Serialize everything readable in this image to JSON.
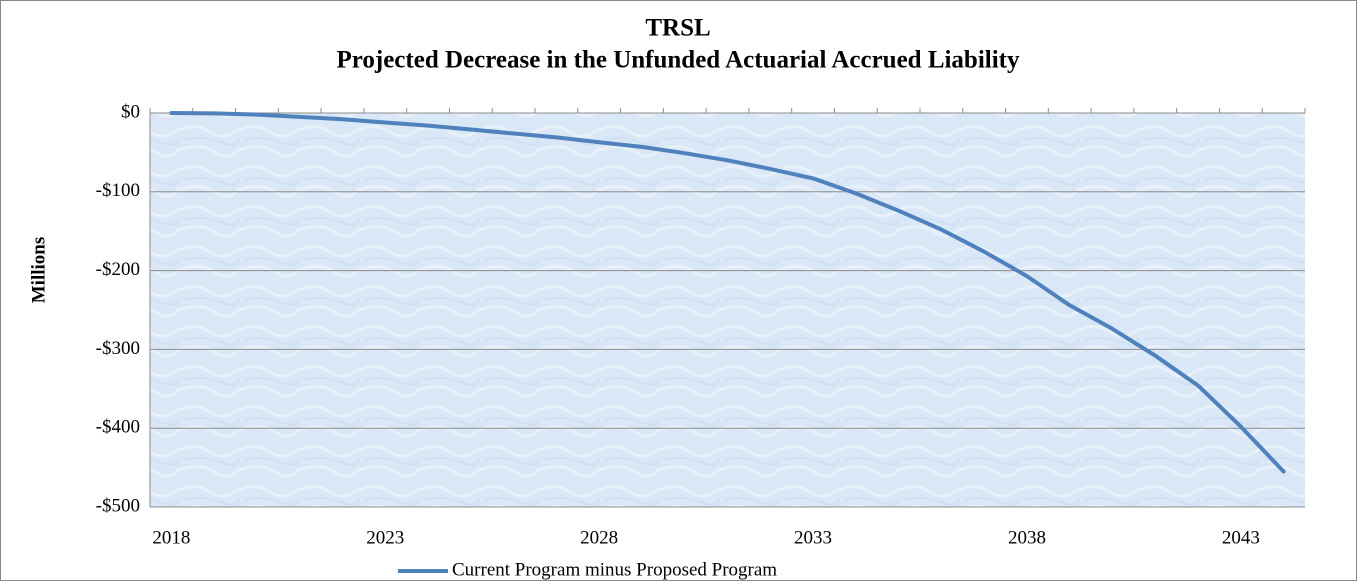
{
  "chart_data": {
    "type": "line",
    "title": "TRSL",
    "subtitle": "Projected Decrease in the Unfunded Actuarial Accrued Liability",
    "y_label": "Millions",
    "categories": [
      "2018",
      null,
      null,
      null,
      null,
      "2023",
      null,
      null,
      null,
      null,
      "2028",
      null,
      null,
      null,
      null,
      "2033",
      null,
      null,
      null,
      null,
      "2038",
      null,
      null,
      null,
      null,
      "2043",
      null
    ],
    "series": [
      {
        "name": "Current Program minus Proposed Program",
        "color": "#4f81bd",
        "values": [
          0,
          -0.5,
          -2,
          -5,
          -8,
          -12,
          -16,
          -21,
          -26,
          -31,
          -37,
          -43,
          -51,
          -60,
          -71,
          -83,
          -102,
          -124,
          -148,
          -176,
          -207,
          -244,
          -274,
          -308,
          -346,
          -398,
          -455
        ]
      }
    ],
    "ylim": [
      -500,
      0
    ],
    "yticks": [
      {
        "value": 0,
        "label": "$0"
      },
      {
        "value": -100,
        "label": "-$100"
      },
      {
        "value": -200,
        "label": "-$200"
      },
      {
        "value": -300,
        "label": "-$300"
      },
      {
        "value": -400,
        "label": "-$400"
      },
      {
        "value": -500,
        "label": "-$500"
      }
    ],
    "grid": true,
    "legend": "bottom"
  }
}
